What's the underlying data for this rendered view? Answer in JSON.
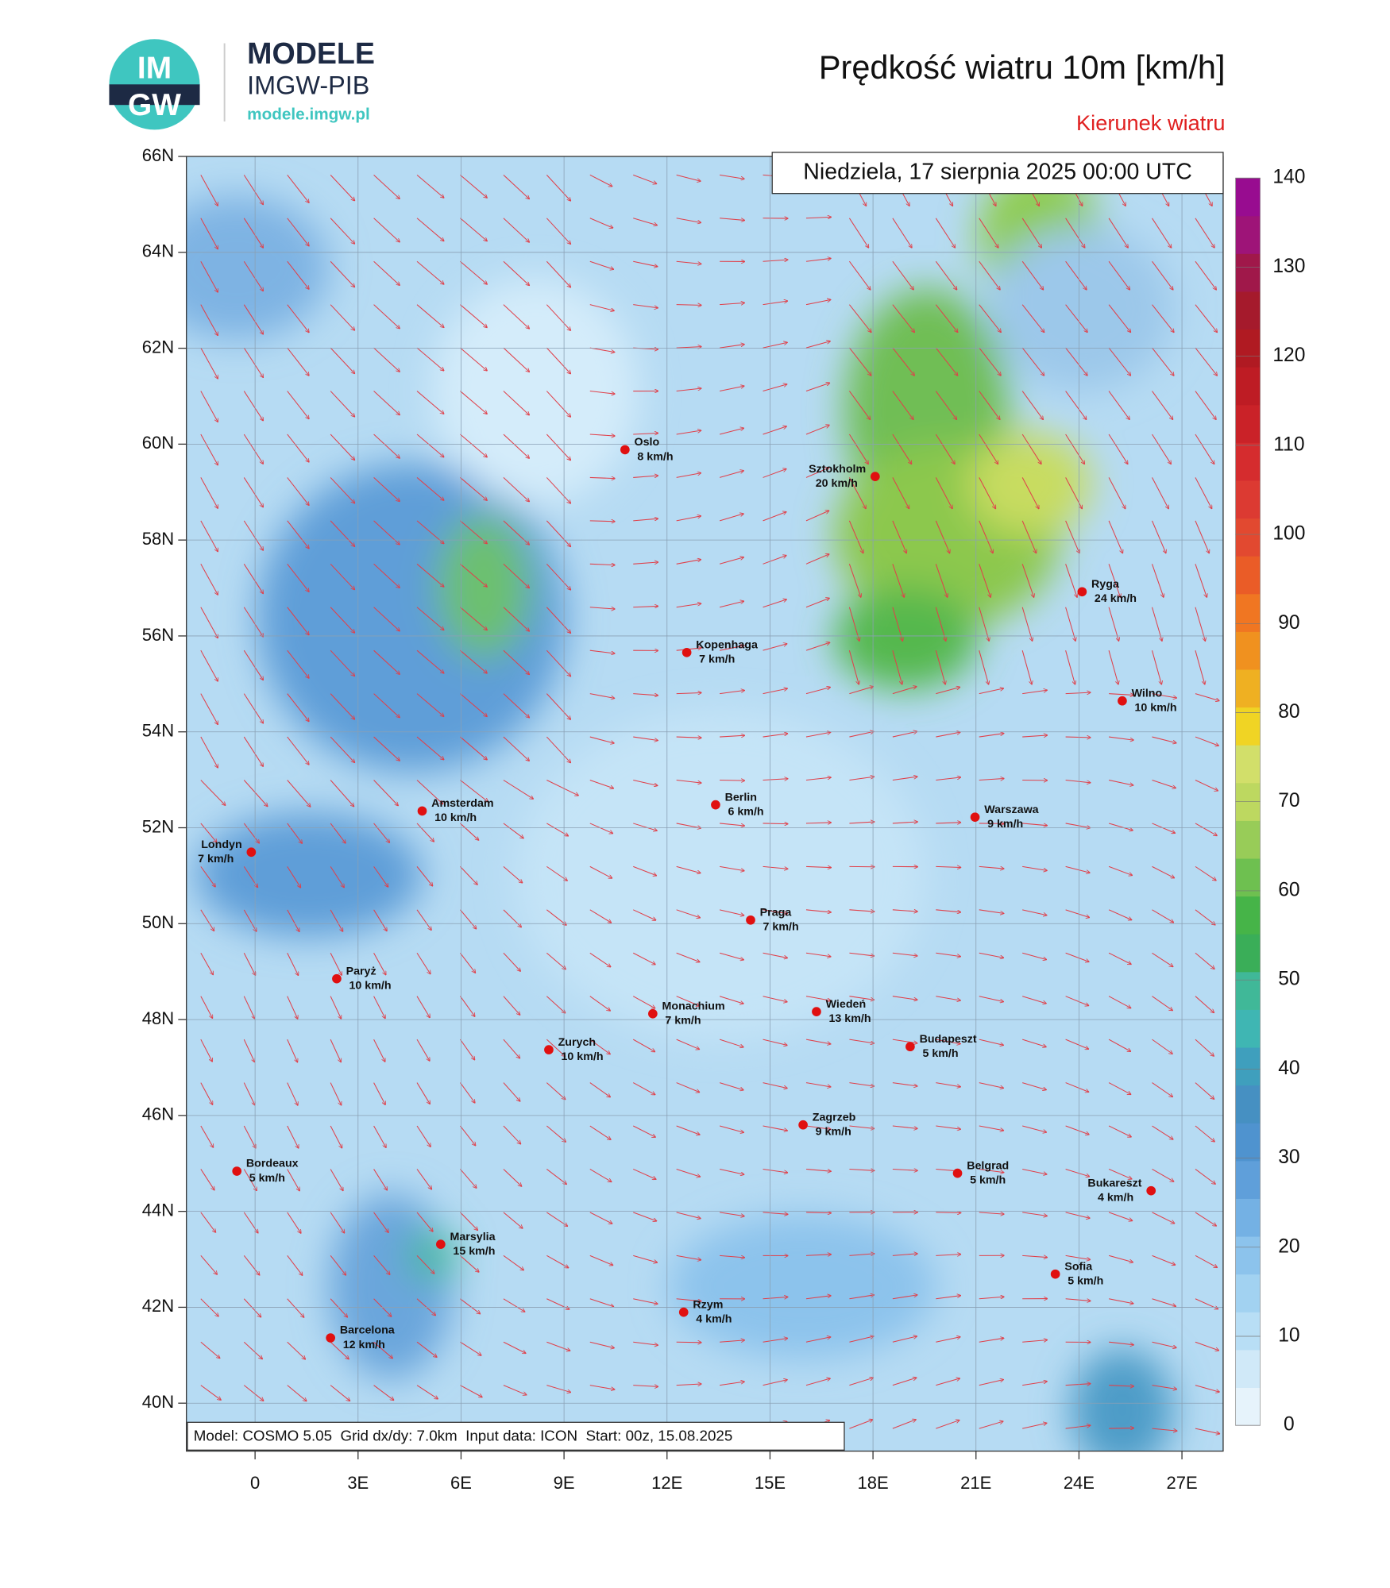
{
  "header": {
    "logo_top": "IM",
    "logo_bottom": "GW",
    "brand": "MODELE",
    "org": "IMGW-PIB",
    "url": "modele.imgw.pl"
  },
  "title": "Prędkość wiatru 10m [km/h]",
  "subtitle": "Kierunek wiatru",
  "date": "Niedziela, 17 sierpnia 2025 00:00 UTC",
  "footer": "Model: COSMO 5.05  Grid dx/dy: 7.0km  Input data: ICON  Start: 00z, 15.08.2025",
  "map": {
    "xlim": [
      -2,
      28.2
    ],
    "ylim": [
      39,
      66
    ],
    "yticks": [
      {
        "value": 66,
        "label": "66N"
      },
      {
        "value": 64,
        "label": "64N"
      },
      {
        "value": 62,
        "label": "62N"
      },
      {
        "value": 60,
        "label": "60N"
      },
      {
        "value": 58,
        "label": "58N"
      },
      {
        "value": 56,
        "label": "56N"
      },
      {
        "value": 54,
        "label": "54N"
      },
      {
        "value": 52,
        "label": "52N"
      },
      {
        "value": 50,
        "label": "50N"
      },
      {
        "value": 48,
        "label": "48N"
      },
      {
        "value": 46,
        "label": "46N"
      },
      {
        "value": 44,
        "label": "44N"
      },
      {
        "value": 42,
        "label": "42N"
      },
      {
        "value": 40,
        "label": "40N"
      }
    ],
    "xticks": [
      0,
      {
        "value": 3,
        "label": "3E"
      },
      {
        "value": 6,
        "label": "6E"
      },
      {
        "value": 9,
        "label": "9E"
      },
      {
        "value": 12,
        "label": "12E"
      },
      {
        "value": 15,
        "label": "15E"
      },
      {
        "value": 18,
        "label": "18E"
      },
      {
        "value": 21,
        "label": "21E"
      },
      {
        "value": 24,
        "label": "24E"
      },
      {
        "value": 27,
        "label": "27E"
      }
    ],
    "grid": true
  },
  "cities": [
    {
      "name": "Oslo",
      "wind": "8 km/h"
    },
    {
      "name": "Sztokholm",
      "wind": "20 km/h"
    },
    {
      "name": "Ryga",
      "wind": "24 km/h"
    },
    {
      "name": "Kopenhaga",
      "wind": "7 km/h"
    },
    {
      "name": "Wilno",
      "wind": "10 km/h"
    },
    {
      "name": "Amsterdam",
      "wind": "10 km/h"
    },
    {
      "name": "Berlin",
      "wind": "6 km/h"
    },
    {
      "name": "Warszawa",
      "wind": "9 km/h"
    },
    {
      "name": "Londyn",
      "wind": "7 km/h"
    },
    {
      "name": "Praga",
      "wind": "7 km/h"
    },
    {
      "name": "Paryż",
      "wind": "10 km/h"
    },
    {
      "name": "Monachium",
      "wind": "7 km/h"
    },
    {
      "name": "Wiedeń",
      "wind": "13 km/h"
    },
    {
      "name": "Zurych",
      "wind": "10 km/h"
    },
    {
      "name": "Budapeszt",
      "wind": "5 km/h"
    },
    {
      "name": "Zagrzeb",
      "wind": "9 km/h"
    },
    {
      "name": "Bordeaux",
      "wind": "5 km/h"
    },
    {
      "name": "Belgrad",
      "wind": "5 km/h"
    },
    {
      "name": "Bukareszt",
      "wind": "4 km/h"
    },
    {
      "name": "Marsylia",
      "wind": "15 km/h"
    },
    {
      "name": "Sofia",
      "wind": "5 km/h"
    },
    {
      "name": "Rzym",
      "wind": "4 km/h"
    },
    {
      "name": "Barcelona",
      "wind": "12 km/h"
    }
  ],
  "colorbar": {
    "lim": [
      0,
      140
    ],
    "ticks": [
      0,
      10,
      20,
      30,
      40,
      50,
      60,
      70,
      80,
      90,
      100,
      110,
      120,
      130,
      140
    ],
    "colors": [
      "#e6f3fb",
      "#d0e9f8",
      "#b8def5",
      "#a2d2f1",
      "#8cc3ec",
      "#74b1e4",
      "#5f9fda",
      "#4f93cf",
      "#4690c2",
      "#3f9fbd",
      "#3fb6b3",
      "#40b898",
      "#3aae58",
      "#46b448",
      "#6ec050",
      "#98cc58",
      "#bdd860",
      "#d2df6a",
      "#f0d424",
      "#efb022",
      "#f0911f",
      "#f07622",
      "#ea5c27",
      "#e24930",
      "#dc3a32",
      "#d52c2e",
      "#ca2228",
      "#be1c24",
      "#b01a22",
      "#a51a2c",
      "#a0184a",
      "#9e1478",
      "#980c90"
    ]
  }
}
